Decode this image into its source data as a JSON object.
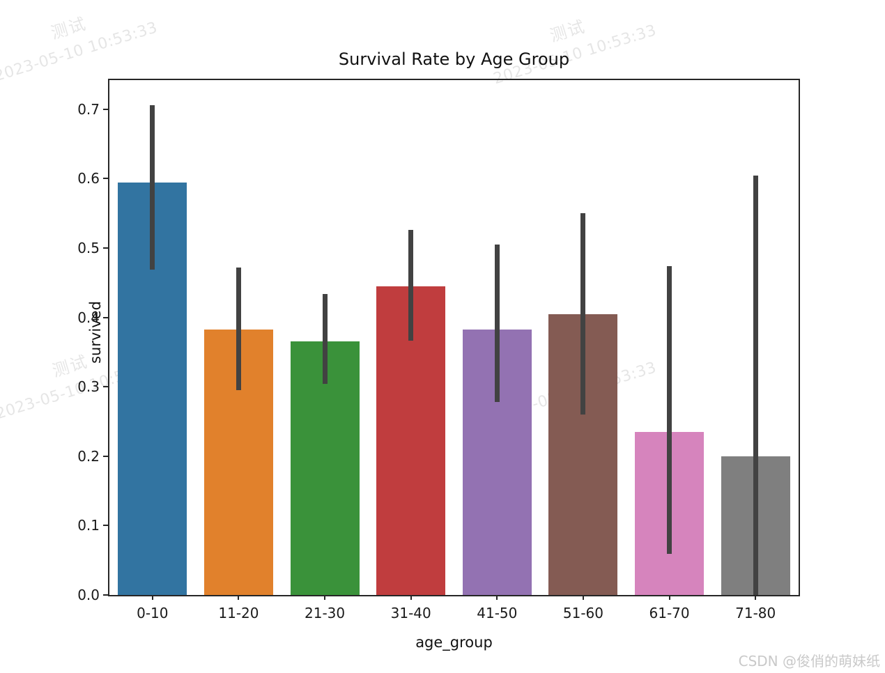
{
  "watermark": {
    "stamp_line1": "测试",
    "stamp_line2": "2023-05-10 10:53:33",
    "csdn": "CSDN @俊俏的萌妹纸"
  },
  "chart_data": {
    "type": "bar",
    "title": "Survival Rate by Age Group",
    "xlabel": "age_group",
    "ylabel": "survived",
    "categories": [
      "0-10",
      "11-20",
      "21-30",
      "31-40",
      "41-50",
      "51-60",
      "61-70",
      "71-80"
    ],
    "values": [
      0.594,
      0.383,
      0.365,
      0.445,
      0.383,
      0.405,
      0.235,
      0.2
    ],
    "error_low": [
      0.469,
      0.295,
      0.304,
      0.366,
      0.278,
      0.26,
      0.059,
      0.0
    ],
    "error_high": [
      0.706,
      0.472,
      0.434,
      0.526,
      0.505,
      0.55,
      0.474,
      0.604
    ],
    "bar_colors": [
      "#3274a1",
      "#e1812c",
      "#3a923a",
      "#c03d3e",
      "#9372b2",
      "#845b53",
      "#d684bd",
      "#7f7f7f"
    ],
    "error_bar_color": "#424242",
    "axis_color": "#262626",
    "ylim": [
      0,
      0.742
    ],
    "ytick_labels": [
      "0.0",
      "0.1",
      "0.2",
      "0.3",
      "0.4",
      "0.5",
      "0.6",
      "0.7"
    ],
    "grid": false,
    "legend": null,
    "bar_width_fraction": 0.8
  }
}
